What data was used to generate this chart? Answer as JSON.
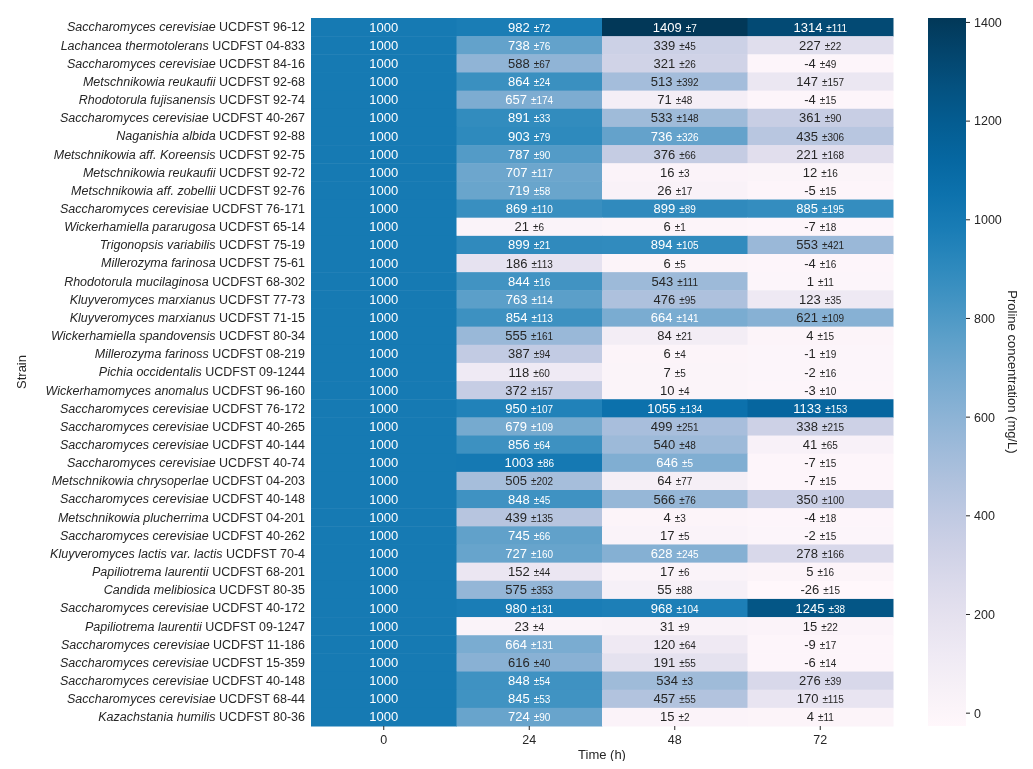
{
  "chart_data": {
    "type": "heatmap",
    "xlabel": "Time (h)",
    "ylabel": "Strain",
    "clabel": "Proline concentration (mg/L)",
    "categories": [
      "0",
      "24",
      "48",
      "72"
    ],
    "y_categories": [
      "Saccharomyces cerevisiae UCDFST 96-12",
      "Lachancea thermotolerans UCDFST 04-833",
      "Saccharomyces cerevisiae UCDFST 84-16",
      "Metschnikowia reukaufii UCDFST 92-68",
      "Rhodotorula fujisanensis UCDFST 92-74",
      "Saccharomyces cerevisiae UCDFST 40-267",
      "Naganishia albida UCDFST 92-88",
      "Metschnikowia aff. Koreensis UCDFST 92-75",
      "Metschnikowia reukaufii UCDFST 92-72",
      "Metschnikowia aff. zobellii UCDFST 92-76",
      "Saccharomyces cerevisiae UCDFST 76-171",
      "Wickerhamiella pararugosa UCDFST 65-14",
      "Trigonopsis variabilis UCDFST 75-19",
      "Millerozyma farinosa UCDFST 75-61",
      "Rhodotorula mucilaginosa UCDFST 68-302",
      "Kluyveromyces marxianus UCDFST 77-73",
      "Kluyveromyces marxianus UCDFST 71-15",
      "Wickerhamiella spandovensis UCDFST 80-34",
      "Millerozyma farinoss UCDFST 08-219",
      "Pichia occidentalis UCDFST 09-1244",
      "Wickerhamomyces anomalus UCDFST 96-160",
      "Saccharomyces cerevisiae UCDFST 76-172",
      "Saccharomyces cerevisiae UCDFST 40-265",
      "Saccharomyces cerevisiae UCDFST 40-144",
      "Saccharomyces cerevisiae UCDFST 40-74",
      "Metschnikowia chrysoperlae UCDFST 04-203",
      "Saccharomyces cerevisiae UCDFST 40-148",
      "Metschnikowia plucherrima UCDFST 04-201",
      "Saccharomyces cerevisiae UCDFST 40-262",
      "Kluyveromyces lactis var. lactis UCDFST 70-4",
      "Papiliotrema laurentii UCDFST 68-201",
      "Candida melibiosica UCDFST 80-35",
      "Saccharomyces cerevisiae UCDFST 40-172",
      "Papiliotrema laurentii UCDFST 09-1247",
      "Saccharomyces cerevisiae UCDFST 11-186",
      "Saccharomyces cerevisiae UCDFST 15-359",
      "Saccharomyces cerevisiae UCDFST 40-148",
      "Saccharomyces cerevisiae UCDFST 68-44",
      "Kazachstania humilis UCDFST 80-36"
    ],
    "cells": [
      [
        1000,
        982,
        1409,
        1314
      ],
      [
        1000,
        738,
        339,
        227
      ],
      [
        1000,
        588,
        321,
        -4
      ],
      [
        1000,
        864,
        513,
        147
      ],
      [
        1000,
        657,
        71,
        -4
      ],
      [
        1000,
        891,
        533,
        361
      ],
      [
        1000,
        903,
        736,
        435
      ],
      [
        1000,
        787,
        376,
        221
      ],
      [
        1000,
        707,
        16,
        12
      ],
      [
        1000,
        719,
        26,
        -5
      ],
      [
        1000,
        869,
        899,
        885
      ],
      [
        1000,
        21,
        6,
        -7
      ],
      [
        1000,
        899,
        894,
        553
      ],
      [
        1000,
        186,
        6,
        -4
      ],
      [
        1000,
        844,
        543,
        1
      ],
      [
        1000,
        763,
        476,
        123
      ],
      [
        1000,
        854,
        664,
        621
      ],
      [
        1000,
        555,
        84,
        4
      ],
      [
        1000,
        387,
        6,
        -1
      ],
      [
        1000,
        118,
        7,
        -2
      ],
      [
        1000,
        372,
        10,
        -3
      ],
      [
        1000,
        950,
        1055,
        1133
      ],
      [
        1000,
        679,
        499,
        338
      ],
      [
        1000,
        856,
        540,
        41
      ],
      [
        1000,
        1003,
        646,
        -7
      ],
      [
        1000,
        505,
        64,
        -7
      ],
      [
        1000,
        848,
        566,
        350
      ],
      [
        1000,
        439,
        4,
        -4
      ],
      [
        1000,
        745,
        17,
        -2
      ],
      [
        1000,
        727,
        628,
        278
      ],
      [
        1000,
        152,
        17,
        5
      ],
      [
        1000,
        575,
        55,
        -26
      ],
      [
        1000,
        980,
        968,
        1245
      ],
      [
        1000,
        23,
        31,
        15
      ],
      [
        1000,
        664,
        120,
        -9
      ],
      [
        1000,
        616,
        191,
        -6
      ],
      [
        1000,
        848,
        534,
        276
      ],
      [
        1000,
        845,
        457,
        170
      ],
      [
        1000,
        724,
        15,
        4
      ]
    ],
    "cell_labels": [
      [
        "1000",
        "982 ±72",
        "1409 ±7",
        "1314 ±111"
      ],
      [
        "1000",
        "738 ±76",
        "339 ±45",
        "227 ±22"
      ],
      [
        "1000",
        "588 ±67",
        "321 ±26",
        "-4 ±49"
      ],
      [
        "1000",
        "864 ±24",
        "513 ±392",
        "147 ±157"
      ],
      [
        "1000",
        "657 ±174",
        "71 ±48",
        "-4 ±15"
      ],
      [
        "1000",
        "891 ±33",
        "533 ±148",
        "361 ±90"
      ],
      [
        "1000",
        "903 ±79",
        "736 ±326",
        "435 ±306"
      ],
      [
        "1000",
        "787 ±90",
        "376 ±66",
        "221 ±168"
      ],
      [
        "1000",
        "707 ±117",
        "16 ±3",
        "12 ±16"
      ],
      [
        "1000",
        "719 ±58",
        "26 ±17",
        "-5 ±15"
      ],
      [
        "1000",
        "869 ±110",
        "899 ±89",
        "885 ±195"
      ],
      [
        "1000",
        "21 ±6",
        "6 ±1",
        "-7 ±18"
      ],
      [
        "1000",
        "899 ±21",
        "894 ±105",
        "553 ±421"
      ],
      [
        "1000",
        "186 ±113",
        "6 ±5",
        "-4 ±16"
      ],
      [
        "1000",
        "844 ±16",
        "543 ±111",
        "1 ±11"
      ],
      [
        "1000",
        "763 ±114",
        "476 ±95",
        "123 ±35"
      ],
      [
        "1000",
        "854 ±113",
        "664 ±141",
        "621 ±109"
      ],
      [
        "1000",
        "555 ±161",
        "84 ±21",
        "4 ±15"
      ],
      [
        "1000",
        "387 ±94",
        "6 ±4",
        "-1 ±19"
      ],
      [
        "1000",
        "118 ±60",
        "7 ±5",
        "-2 ±16"
      ],
      [
        "1000",
        "372 ±157",
        "10 ±4",
        "-3 ±10"
      ],
      [
        "1000",
        "950 ±107",
        "1055 ±134",
        "1133 ±153"
      ],
      [
        "1000",
        "679 ±109",
        "499 ±251",
        "338 ±215"
      ],
      [
        "1000",
        "856 ±64",
        "540 ±48",
        "41 ±65"
      ],
      [
        "1000",
        "1003 ±86",
        "646 ±5",
        "-7 ±15"
      ],
      [
        "1000",
        "505 ±202",
        "64 ±77",
        "-7 ±15"
      ],
      [
        "1000",
        "848 ±45",
        "566 ±76",
        "350 ±100"
      ],
      [
        "1000",
        "439 ±135",
        "4 ±3",
        "-4 ±18"
      ],
      [
        "1000",
        "745 ±66",
        "17 ±5",
        "-2 ±15"
      ],
      [
        "1000",
        "727 ±160",
        "628 ±245",
        "278 ±166"
      ],
      [
        "1000",
        "152 ±44",
        "17 ±6",
        "5 ±16"
      ],
      [
        "1000",
        "575 ±353",
        "55 ±88",
        "-26 ±15"
      ],
      [
        "1000",
        "980 ±131",
        "968 ±104",
        "1245 ±38"
      ],
      [
        "1000",
        "23 ±4",
        "31 ±9",
        "15 ±22"
      ],
      [
        "1000",
        "664 ±131",
        "120 ±64",
        "-9 ±17"
      ],
      [
        "1000",
        "616 ±40",
        "191 ±55",
        "-6 ±14"
      ],
      [
        "1000",
        "848 ±54",
        "534 ±3",
        "276 ±39"
      ],
      [
        "1000",
        "845 ±53",
        "457 ±55",
        "170 ±115"
      ],
      [
        "1000",
        "724 ±90",
        "15 ±2",
        "4 ±11"
      ]
    ],
    "clim": [
      -26,
      1409
    ],
    "cticks": [
      0,
      200,
      400,
      600,
      800,
      1000,
      1200,
      1400
    ]
  }
}
